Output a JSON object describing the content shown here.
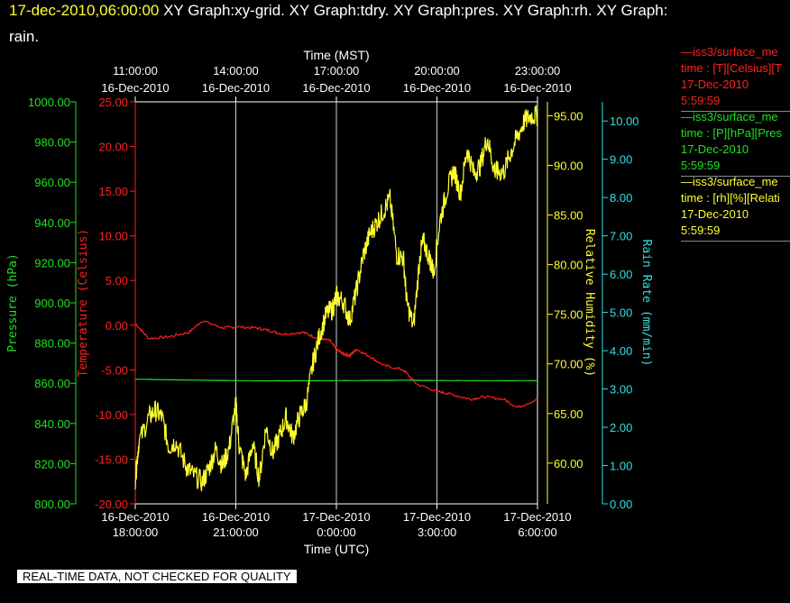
{
  "header": {
    "timestamp": "17-dec-2010,06:00:00",
    "graphs_line1": "XY Graph:xy-grid.  XY Graph:tdry.  XY Graph:pres.  XY Graph:rh.  XY Graph:",
    "graphs_line2": "rain."
  },
  "notice": "REAL-TIME DATA, NOT CHECKED FOR QUALITY",
  "legend": [
    {
      "name": "—iss3/surface_me",
      "desc": "time : [T][Celsius][T",
      "date": "17-Dec-2010",
      "time": "5:59:59",
      "color": "#ff2020"
    },
    {
      "name": "—iss3/surface_me",
      "desc": "time : [P][hPa][Pres",
      "date": "17-Dec-2010",
      "time": "5:59:59",
      "color": "#20e020"
    },
    {
      "name": "—iss3/surface_me",
      "desc": "time : [rh][%][Relati",
      "date": "17-Dec-2010",
      "time": "5:59:59",
      "color": "#ffff30"
    }
  ],
  "chart_data": {
    "type": "line",
    "top_axis": {
      "label": "Time (MST)",
      "ticks": [
        [
          "11:00:00",
          "16-Dec-2010"
        ],
        [
          "14:00:00",
          "16-Dec-2010"
        ],
        [
          "17:00:00",
          "16-Dec-2010"
        ],
        [
          "20:00:00",
          "16-Dec-2010"
        ],
        [
          "23:00:00",
          "16-Dec-2010"
        ]
      ]
    },
    "bottom_axis": {
      "label": "Time (UTC)",
      "ticks": [
        [
          "16-Dec-2010",
          "18:00:00"
        ],
        [
          "16-Dec-2010",
          "21:00:00"
        ],
        [
          "17-Dec-2010",
          "0:00:00"
        ],
        [
          "17-Dec-2010",
          "3:00:00"
        ],
        [
          "17-Dec-2010",
          "6:00:00"
        ]
      ]
    },
    "x_unit": "hours UTC relative to 2010-12-17 00:00",
    "xlim": [
      -6,
      6
    ],
    "grid": true,
    "axes": {
      "pressure": {
        "label": "Pressure (hPa)",
        "color": "#20e020",
        "ylim": [
          800,
          1000
        ],
        "ticks": [
          "800.00",
          "820.00",
          "840.00",
          "860.00",
          "880.00",
          "900.00",
          "920.00",
          "940.00",
          "960.00",
          "980.00",
          "1000.00"
        ]
      },
      "temperature": {
        "label": "Temperature (Celsius)",
        "color": "#ff2020",
        "ylim": [
          -20,
          25
        ],
        "ticks": [
          "-20.00",
          "-15.00",
          "-10.00",
          "-5.00",
          "0.00",
          "5.00",
          "10.00",
          "15.00",
          "20.00",
          "25.00"
        ]
      },
      "rh": {
        "label": "Relative Humidity (%)",
        "color": "#ffff30",
        "ylim": [
          55.9,
          96.4
        ],
        "ticks": [
          "60.00",
          "65.00",
          "70.00",
          "75.00",
          "80.00",
          "85.00",
          "90.00",
          "95.00"
        ]
      },
      "rain": {
        "label": "Rain Rate (mm/min)",
        "color": "#30e0e0",
        "ylim": [
          0,
          10.5
        ],
        "ticks": [
          "0.00",
          "1.00",
          "2.00",
          "3.00",
          "4.00",
          "5.00",
          "6.00",
          "7.00",
          "8.00",
          "9.00",
          "10.00"
        ]
      }
    },
    "series": [
      {
        "name": "Temperature",
        "axis": "temperature",
        "x": [
          -6,
          -5.6,
          -5.0,
          -4.4,
          -4.0,
          -3.4,
          -3.0,
          -2.4,
          -2.0,
          -1.6,
          -1.0,
          -0.6,
          -0.2,
          0,
          0.2,
          0.4,
          0.6,
          1.0,
          1.4,
          2.0,
          2.4,
          3.0,
          3.4,
          4.0,
          4.4,
          5.0,
          5.4,
          6.0
        ],
        "values": [
          0.2,
          -1.5,
          -1.3,
          -0.8,
          0.5,
          -0.3,
          -0.2,
          -0.3,
          -0.6,
          -1.0,
          -0.8,
          -1.4,
          -1.7,
          -2.7,
          -3.2,
          -3.4,
          -2.7,
          -3.5,
          -4.5,
          -5.0,
          -6.6,
          -7.4,
          -7.7,
          -8.3,
          -8.0,
          -8.3,
          -9.2,
          -8.3
        ]
      },
      {
        "name": "Pressure",
        "axis": "pressure",
        "x": [
          -6,
          -4,
          -2,
          0,
          2,
          4,
          6
        ],
        "values": [
          862,
          861.5,
          861.2,
          861.3,
          861.5,
          861.3,
          861.3
        ]
      },
      {
        "name": "Relative Humidity",
        "axis": "rh",
        "x": [
          -6,
          -5.9,
          -5.6,
          -5.4,
          -5.2,
          -5.0,
          -4.8,
          -4.5,
          -4.3,
          -4.0,
          -3.8,
          -3.6,
          -3.4,
          -3.2,
          -3.0,
          -2.9,
          -2.7,
          -2.5,
          -2.3,
          -2.1,
          -1.9,
          -1.7,
          -1.5,
          -1.3,
          -1.1,
          -0.9,
          -0.7,
          -0.5,
          -0.3,
          -0.1,
          0,
          0.2,
          0.4,
          0.6,
          0.8,
          1.0,
          1.2,
          1.4,
          1.6,
          1.8,
          2.0,
          2.1,
          2.3,
          2.5,
          2.6,
          2.8,
          2.9,
          3.1,
          3.3,
          3.5,
          3.7,
          3.9,
          4.1,
          4.3,
          4.5,
          4.7,
          4.8,
          5.0,
          5.2,
          5.4,
          5.6,
          5.8,
          6.0
        ],
        "values": [
          58.4,
          62,
          64.6,
          65.3,
          64.6,
          61.6,
          62.2,
          59.8,
          58.9,
          58.1,
          59.5,
          61.4,
          59.7,
          61.5,
          66.0,
          61.7,
          58.7,
          62.0,
          58.4,
          63.6,
          61.0,
          62.7,
          64.6,
          62.6,
          64.7,
          66.0,
          70.1,
          72.9,
          75.0,
          75.6,
          76.8,
          76.3,
          74.4,
          77.4,
          80.9,
          83.1,
          84.2,
          85.4,
          86.6,
          81.0,
          80.7,
          76.2,
          73.7,
          81.1,
          82.3,
          80.4,
          79.2,
          84.6,
          87.5,
          89.5,
          87.2,
          91.6,
          89.2,
          90.0,
          92.8,
          89.7,
          89.3,
          89.4,
          91.3,
          92.9,
          94.4,
          95.0,
          95.0
        ]
      },
      {
        "name": "Rain Rate",
        "axis": "rain",
        "x": [],
        "values": []
      }
    ]
  }
}
